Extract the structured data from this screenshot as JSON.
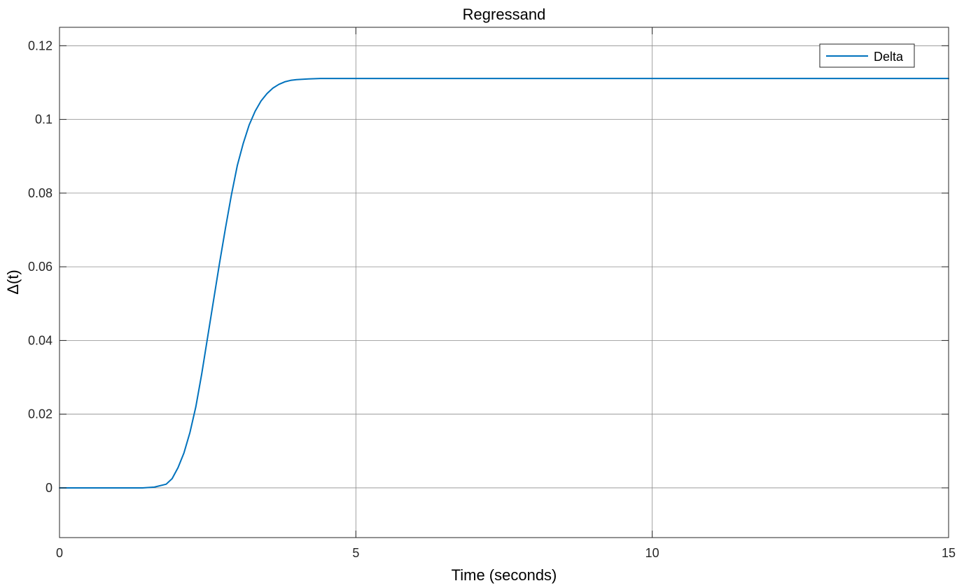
{
  "chart_data": {
    "type": "line",
    "title": "Regressand",
    "xlabel": "Time (seconds)",
    "ylabel": "Δ(t)",
    "xlim": [
      0,
      15
    ],
    "ylim": [
      -0.0135,
      0.125
    ],
    "xticks": [
      0,
      5,
      10,
      15
    ],
    "xtick_labels": [
      "0",
      "5",
      "10",
      "15"
    ],
    "yticks": [
      0,
      0.02,
      0.04,
      0.06,
      0.08,
      0.1,
      0.12
    ],
    "ytick_labels": [
      "0",
      "0.02",
      "0.04",
      "0.06",
      "0.08",
      "0.1",
      "0.12"
    ],
    "grid": true,
    "legend_position": "top-right",
    "series": [
      {
        "name": "Delta",
        "color": "#0072BD",
        "x": [
          0,
          0.5,
          1.0,
          1.4,
          1.6,
          1.8,
          1.9,
          2.0,
          2.1,
          2.2,
          2.3,
          2.4,
          2.5,
          2.6,
          2.7,
          2.8,
          2.9,
          3.0,
          3.1,
          3.2,
          3.3,
          3.4,
          3.5,
          3.6,
          3.7,
          3.8,
          3.9,
          4.0,
          4.2,
          4.4,
          4.6,
          4.8,
          5.0,
          6.0,
          8.0,
          10.0,
          12.0,
          15.0
        ],
        "y": [
          0,
          0,
          0,
          0,
          0.0002,
          0.001,
          0.0025,
          0.0055,
          0.0095,
          0.015,
          0.022,
          0.031,
          0.041,
          0.051,
          0.061,
          0.0705,
          0.0795,
          0.0875,
          0.0935,
          0.0985,
          0.1022,
          0.105,
          0.107,
          0.1085,
          0.1095,
          0.1102,
          0.1106,
          0.1108,
          0.111,
          0.1111,
          0.1111,
          0.1111,
          0.1111,
          0.1111,
          0.1111,
          0.1111,
          0.1111,
          0.1111
        ]
      }
    ]
  }
}
